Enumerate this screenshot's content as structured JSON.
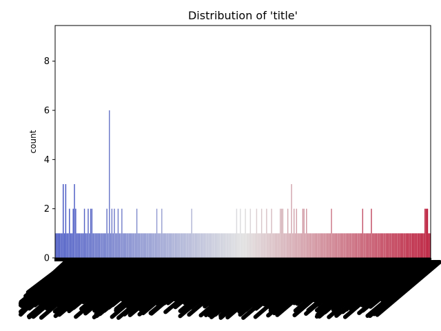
{
  "chart_data": {
    "type": "bar",
    "title": "Distribution of 'title'",
    "xlabel": "",
    "ylabel": "count",
    "ylim": [
      0,
      9.45
    ],
    "yticks": [
      0,
      2,
      4,
      6,
      8
    ],
    "grid": false,
    "colormap": "coolwarm",
    "colors": {
      "start": "#3b4cc0",
      "mid": "#dddddd",
      "end": "#b40426",
      "tick_clutter": "#000000",
      "axes": "#000000"
    },
    "categories_note": "x tick labels overlap into an illegible band and cannot be read",
    "values": [
      1,
      1,
      1,
      1,
      1,
      1,
      3,
      1,
      3,
      1,
      1,
      2,
      1,
      1,
      2,
      3,
      2,
      1,
      1,
      1,
      1,
      1,
      1,
      2,
      1,
      1,
      2,
      1,
      2,
      2,
      1,
      1,
      1,
      1,
      1,
      1,
      1,
      1,
      1,
      1,
      1,
      2,
      1,
      6,
      1,
      2,
      1,
      2,
      1,
      1,
      2,
      1,
      1,
      2,
      1,
      1,
      1,
      1,
      1,
      1,
      1,
      1,
      1,
      1,
      1,
      2,
      1,
      1,
      1,
      1,
      1,
      1,
      1,
      1,
      1,
      1,
      1,
      1,
      1,
      1,
      1,
      2,
      1,
      1,
      1,
      2,
      1,
      1,
      1,
      1,
      1,
      1,
      1,
      1,
      1,
      1,
      1,
      1,
      1,
      1,
      1,
      1,
      1,
      1,
      1,
      1,
      1,
      1,
      1,
      2,
      1,
      1,
      1,
      1,
      1,
      1,
      1,
      1,
      1,
      1,
      1,
      1,
      1,
      1,
      1,
      1,
      1,
      1,
      1,
      1,
      1,
      1,
      1,
      1,
      1,
      1,
      1,
      1,
      1,
      1,
      1,
      1,
      1,
      1,
      1,
      2,
      1,
      1,
      2,
      1,
      1,
      1,
      2,
      1,
      1,
      1,
      2,
      1,
      1,
      1,
      1,
      2,
      1,
      1,
      1,
      2,
      1,
      1,
      1,
      2,
      1,
      1,
      1,
      2,
      1,
      1,
      1,
      1,
      1,
      1,
      2,
      2,
      2,
      1,
      1,
      1,
      2,
      1,
      1,
      3,
      1,
      2,
      1,
      2,
      1,
      1,
      1,
      1,
      2,
      2,
      1,
      2,
      1,
      1,
      1,
      1,
      1,
      1,
      1,
      1,
      1,
      1,
      1,
      1,
      1,
      1,
      1,
      1,
      1,
      1,
      1,
      2,
      1,
      1,
      1,
      1,
      1,
      1,
      1,
      1,
      1,
      1,
      1,
      1,
      1,
      1,
      1,
      1,
      1,
      1,
      1,
      1,
      1,
      1,
      1,
      1,
      2,
      1,
      1,
      1,
      1,
      1,
      1,
      2,
      1,
      1,
      1,
      1,
      1,
      1,
      1,
      1,
      1,
      1,
      1,
      1,
      1,
      1,
      1,
      1,
      1,
      1,
      1,
      1,
      1,
      1,
      1,
      1,
      1,
      1,
      1,
      1,
      1,
      1,
      1,
      1,
      1,
      1,
      1,
      1,
      1,
      1,
      1,
      1,
      1,
      1,
      2,
      2,
      2,
      1,
      1
    ]
  }
}
